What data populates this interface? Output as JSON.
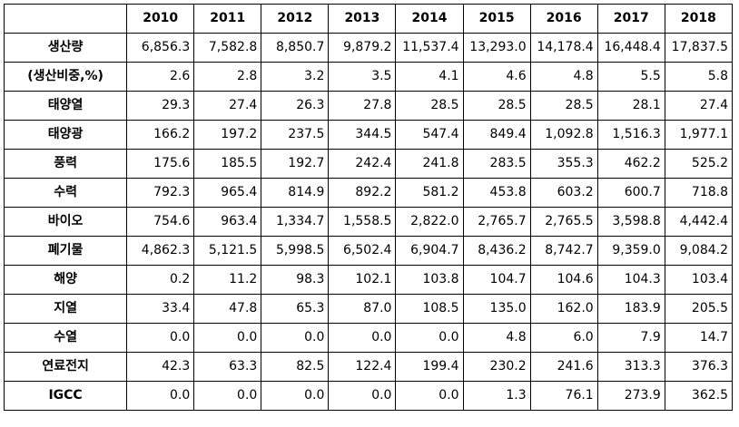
{
  "table": {
    "corner": "",
    "years": [
      "2010",
      "2011",
      "2012",
      "2013",
      "2014",
      "2015",
      "2016",
      "2017",
      "2018"
    ],
    "rows": [
      {
        "label": "생산량",
        "values": [
          "6,856.3",
          "7,582.8",
          "8,850.7",
          "9,879.2",
          "11,537.4",
          "13,293.0",
          "14,178.4",
          "16,448.4",
          "17,837.5"
        ]
      },
      {
        "label": "(생산비중,%)",
        "values": [
          "2.6",
          "2.8",
          "3.2",
          "3.5",
          "4.1",
          "4.6",
          "4.8",
          "5.5",
          "5.8"
        ]
      },
      {
        "label": "태양열",
        "values": [
          "29.3",
          "27.4",
          "26.3",
          "27.8",
          "28.5",
          "28.5",
          "28.5",
          "28.1",
          "27.4"
        ]
      },
      {
        "label": "태양광",
        "values": [
          "166.2",
          "197.2",
          "237.5",
          "344.5",
          "547.4",
          "849.4",
          "1,092.8",
          "1,516.3",
          "1,977.1"
        ]
      },
      {
        "label": "풍력",
        "values": [
          "175.6",
          "185.5",
          "192.7",
          "242.4",
          "241.8",
          "283.5",
          "355.3",
          "462.2",
          "525.2"
        ]
      },
      {
        "label": "수력",
        "values": [
          "792.3",
          "965.4",
          "814.9",
          "892.2",
          "581.2",
          "453.8",
          "603.2",
          "600.7",
          "718.8"
        ]
      },
      {
        "label": "바이오",
        "values": [
          "754.6",
          "963.4",
          "1,334.7",
          "1,558.5",
          "2,822.0",
          "2,765.7",
          "2,765.5",
          "3,598.8",
          "4,442.4"
        ]
      },
      {
        "label": "폐기물",
        "values": [
          "4,862.3",
          "5,121.5",
          "5,998.5",
          "6,502.4",
          "6,904.7",
          "8,436.2",
          "8,742.7",
          "9,359.0",
          "9,084.2"
        ]
      },
      {
        "label": "해양",
        "values": [
          "0.2",
          "11.2",
          "98.3",
          "102.1",
          "103.8",
          "104.7",
          "104.6",
          "104.3",
          "103.4"
        ]
      },
      {
        "label": "지열",
        "values": [
          "33.4",
          "47.8",
          "65.3",
          "87.0",
          "108.5",
          "135.0",
          "162.0",
          "183.9",
          "205.5"
        ]
      },
      {
        "label": "수열",
        "values": [
          "0.0",
          "0.0",
          "0.0",
          "0.0",
          "0.0",
          "4.8",
          "6.0",
          "7.9",
          "14.7"
        ]
      },
      {
        "label": "연료전지",
        "values": [
          "42.3",
          "63.3",
          "82.5",
          "122.4",
          "199.4",
          "230.2",
          "241.6",
          "313.3",
          "376.3"
        ]
      },
      {
        "label": "IGCC",
        "values": [
          "0.0",
          "0.0",
          "0.0",
          "0.0",
          "0.0",
          "1.3",
          "76.1",
          "273.9",
          "362.5"
        ]
      }
    ]
  }
}
